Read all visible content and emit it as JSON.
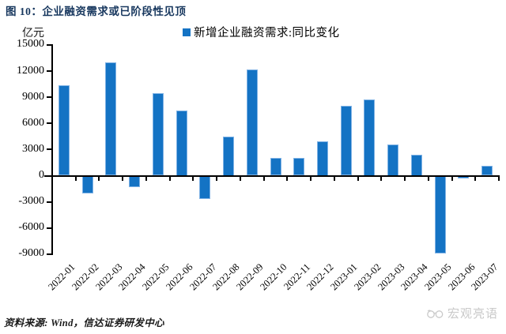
{
  "chart_data": {
    "type": "bar",
    "title": "图 10：企业融资需求或已阶段性见顶",
    "unit_label": "亿元",
    "legend": "新增企业融资需求:同比变化",
    "categories": [
      "2022-01",
      "2022-02",
      "2022-03",
      "2022-04",
      "2022-05",
      "2022-06",
      "2022-07",
      "2022-08",
      "2022-09",
      "2022-10",
      "2022-11",
      "2022-12",
      "2023-01",
      "2023-02",
      "2023-03",
      "2023-04",
      "2023-05",
      "2023-06",
      "2023-07"
    ],
    "values": [
      10400,
      -2000,
      13000,
      -1300,
      9500,
      7500,
      -2700,
      4500,
      12200,
      2000,
      2000,
      3900,
      8000,
      8700,
      3600,
      2400,
      -8900,
      -300,
      1100
    ],
    "ylim": [
      -9000,
      15000
    ],
    "ytick_step": 3000,
    "grid": false,
    "legend_position": "top-center",
    "bar_color": "#1473C4",
    "title_color": "#17375E",
    "axis_color": "#000000",
    "watermark_color": "#C9C9C9",
    "source": "资料来源: Wind，信达证券研发中心",
    "watermark": "宏观亮语"
  }
}
